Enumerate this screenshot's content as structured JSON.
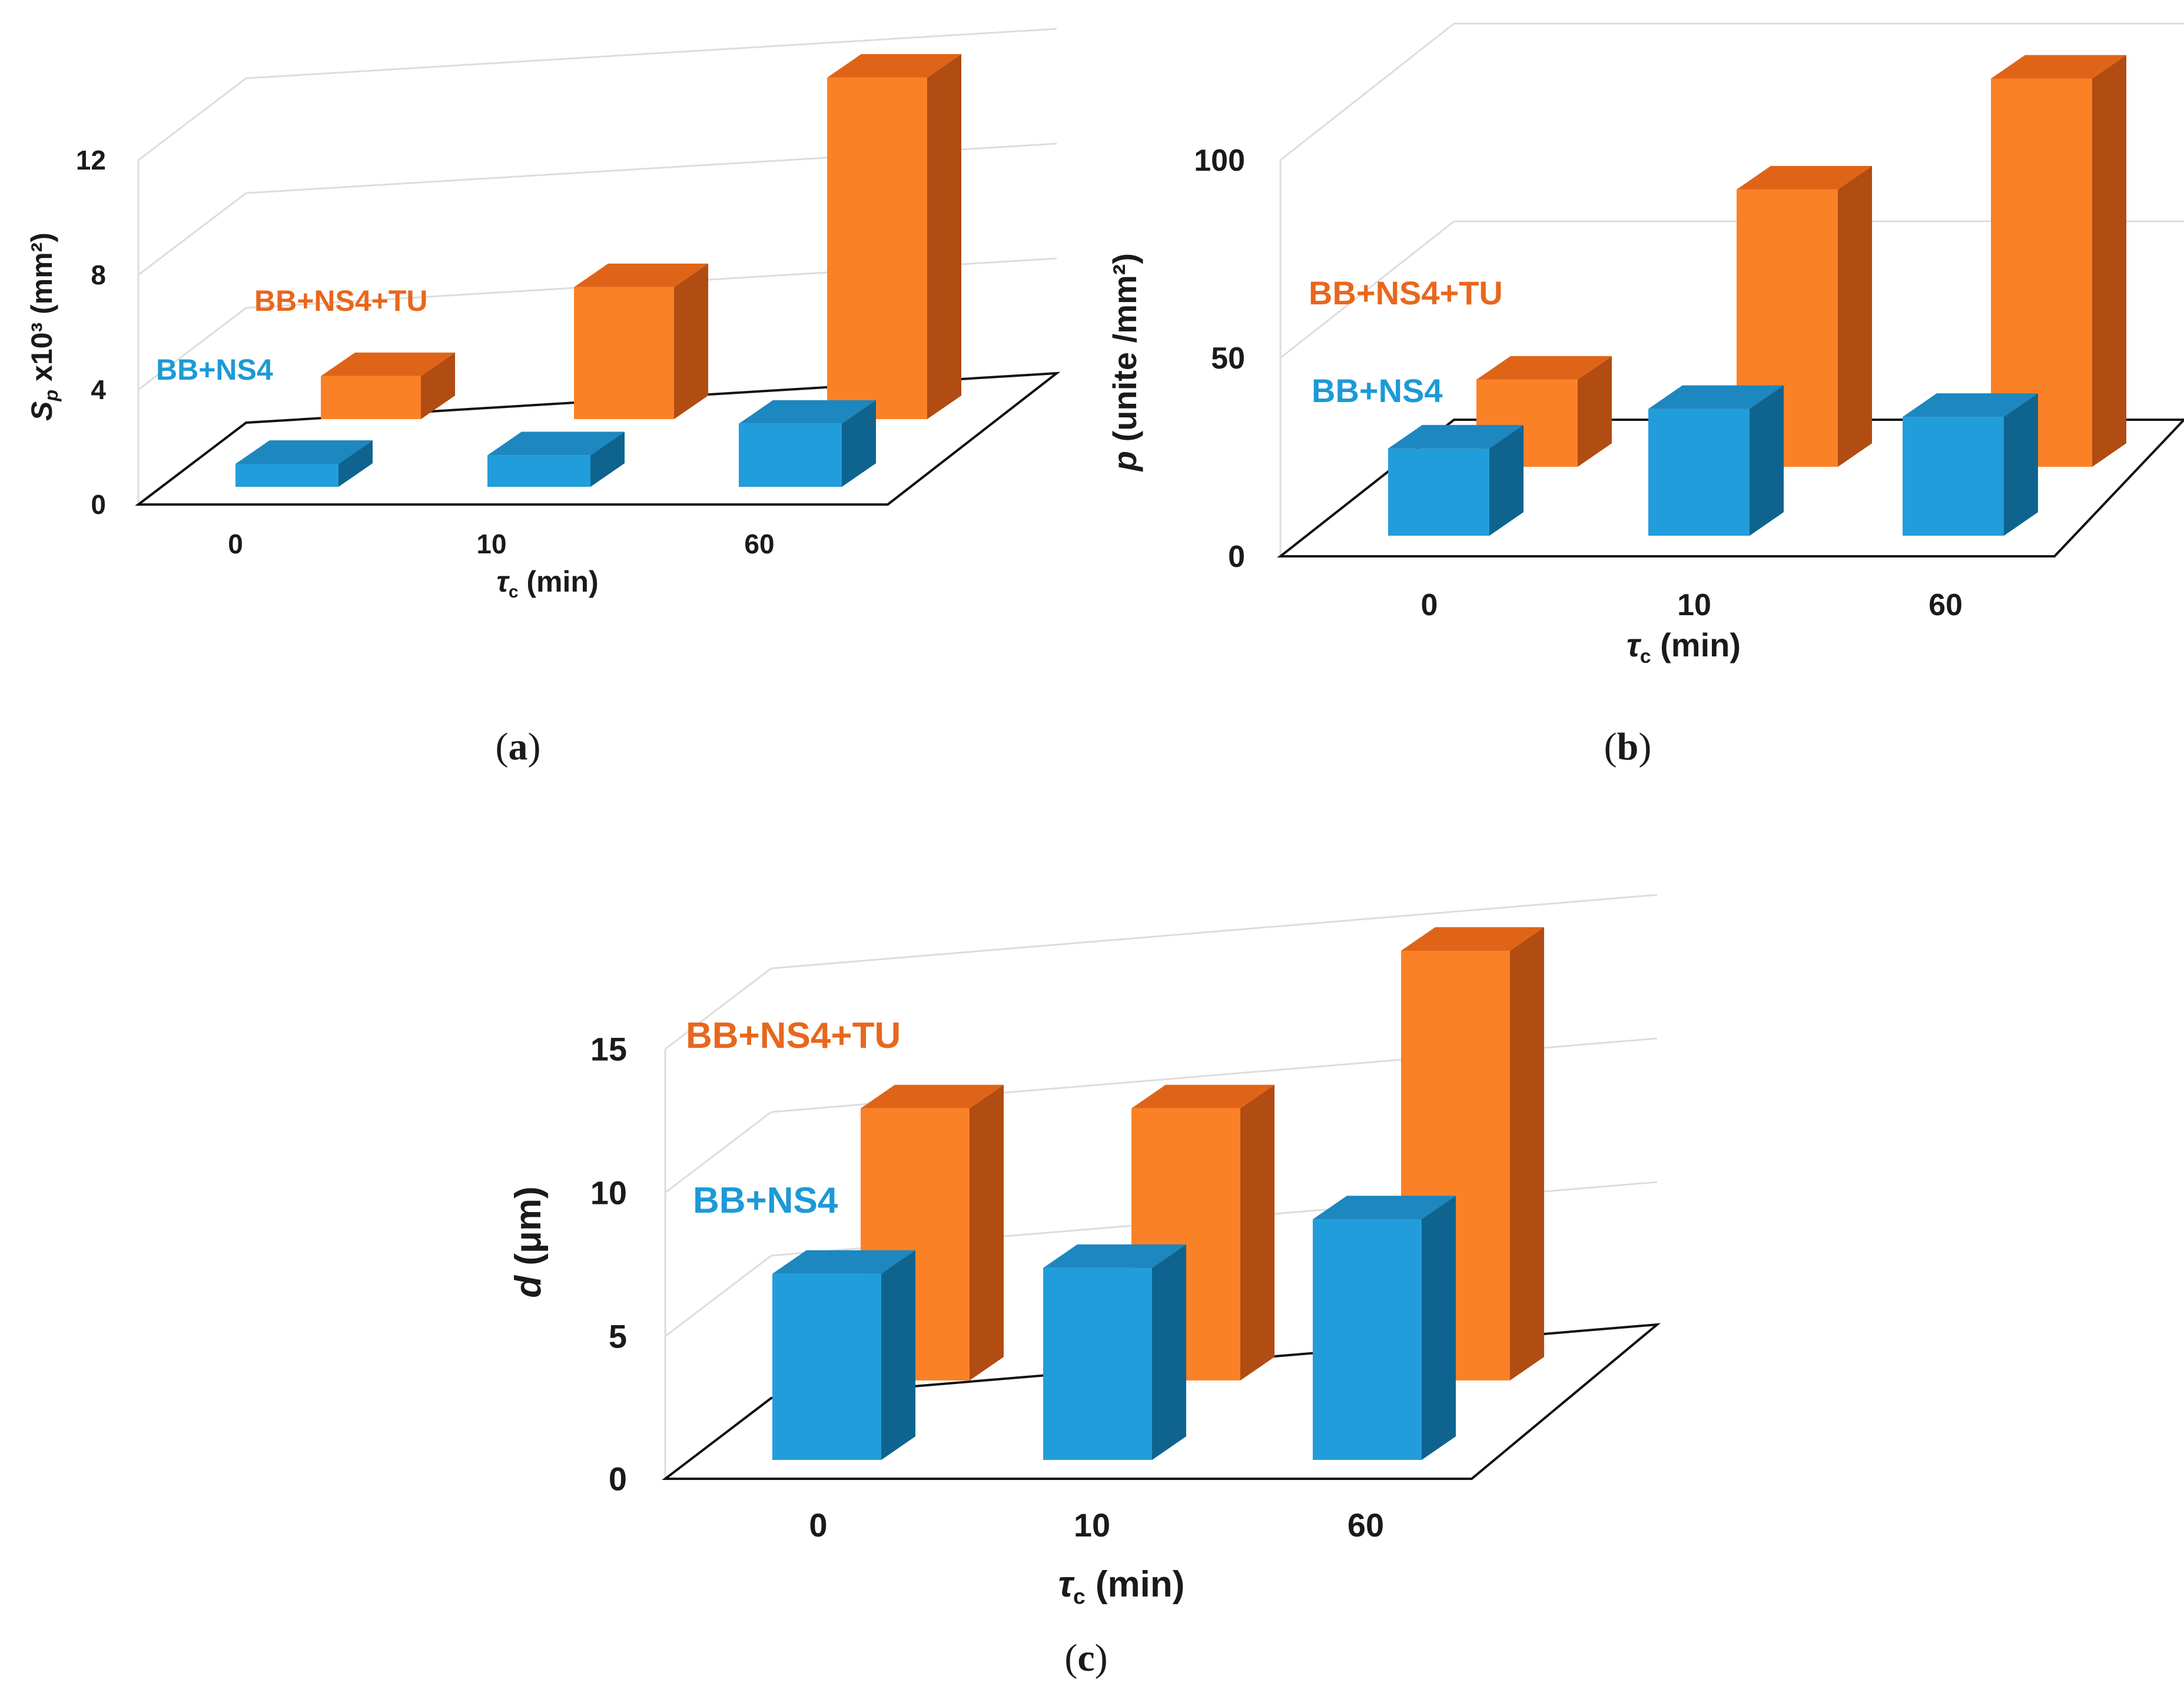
{
  "figure": {
    "colors": {
      "blue_front": "#229ddb",
      "blue_top": "#1d87c0",
      "blue_side": "#0e648f",
      "orange_front": "#fb8127",
      "orange_top": "#e06417",
      "orange_side": "#b14c12",
      "blue_label": "#1c9ad6",
      "orange_label": "#e8671d",
      "grid": "#dddddd",
      "axis": "#111111"
    }
  },
  "chart_data": [
    {
      "type": "bar",
      "panel": "a",
      "caption": "(a)",
      "caption_letter": "a",
      "categories": [
        "0",
        "10",
        "60"
      ],
      "series": [
        {
          "name": "BB+NS4",
          "values": [
            0.8,
            1.1,
            2.2
          ]
        },
        {
          "name": "BB+NS4+TU",
          "values": [
            1.5,
            4.6,
            11.9
          ]
        }
      ],
      "ylim": [
        0,
        12
      ],
      "yticks": [
        "0",
        "4",
        "8",
        "12"
      ],
      "xlabel": "τc (min)",
      "ylabel": "Sp x10³ (mm²)",
      "grid": true
    },
    {
      "type": "bar",
      "panel": "b",
      "caption": "(b)",
      "caption_letter": "b",
      "categories": [
        "0",
        "10",
        "60"
      ],
      "series": [
        {
          "name": "BB+NS4",
          "values": [
            22,
            32,
            30
          ]
        },
        {
          "name": "BB+NS4+TU",
          "values": [
            22,
            70,
            98
          ]
        }
      ],
      "ylim": [
        0,
        100
      ],
      "yticks": [
        "0",
        "50",
        "100"
      ],
      "xlabel": "τc (min)",
      "ylabel": "p (unite /mm²)",
      "grid": true
    },
    {
      "type": "bar",
      "panel": "c",
      "caption": "(c)",
      "caption_letter": "c",
      "categories": [
        "0",
        "10",
        "60"
      ],
      "series": [
        {
          "name": "BB+NS4",
          "values": [
            6.5,
            6.7,
            8.4
          ]
        },
        {
          "name": "BB+NS4+TU",
          "values": [
            9.5,
            9.5,
            15.0
          ]
        }
      ],
      "ylim": [
        0,
        15
      ],
      "yticks": [
        "0",
        "5",
        "10",
        "15"
      ],
      "xlabel": "τc (min)",
      "ylabel": "d (μm)",
      "grid": true
    }
  ]
}
